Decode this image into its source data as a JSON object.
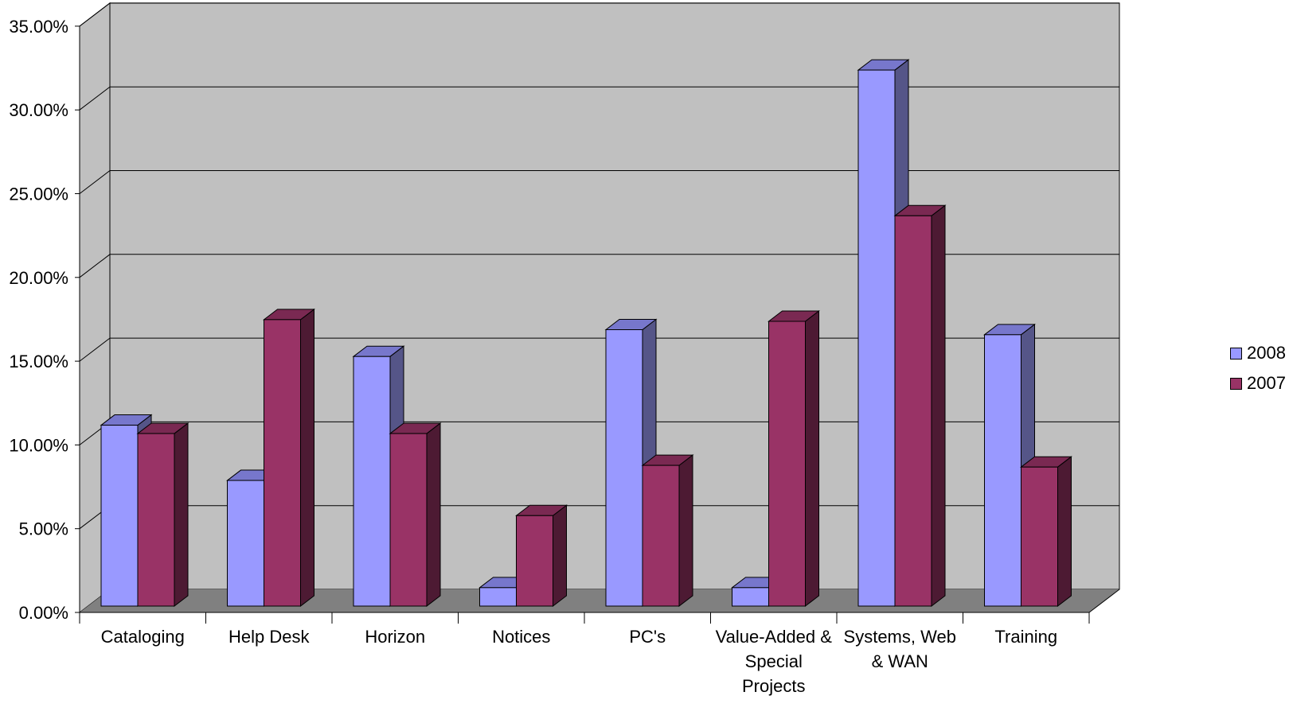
{
  "chart_data": {
    "type": "bar",
    "categories": [
      "Cataloging",
      "Help Desk",
      "Horizon",
      "Notices",
      "PC's",
      "Value-Added & Special Projects",
      "Systems, Web & WAN",
      "Training"
    ],
    "category_lines": [
      [
        "Cataloging"
      ],
      [
        "Help Desk"
      ],
      [
        "Horizon"
      ],
      [
        "Notices"
      ],
      [
        "PC's"
      ],
      [
        "Value-Added &",
        "Special",
        "Projects"
      ],
      [
        "Systems, Web",
        "& WAN"
      ],
      [
        "Training"
      ]
    ],
    "series": [
      {
        "name": "2008",
        "color": "#9999ff",
        "values": [
          10.8,
          7.5,
          14.9,
          1.1,
          16.5,
          1.1,
          32.0,
          16.2
        ]
      },
      {
        "name": "2007",
        "color": "#993366",
        "values": [
          10.3,
          17.1,
          10.3,
          5.4,
          8.4,
          17.0,
          23.3,
          8.3
        ]
      }
    ],
    "y_ticks": [
      "0.00%",
      "5.00%",
      "10.00%",
      "15.00%",
      "20.00%",
      "25.00%",
      "30.00%",
      "35.00%"
    ],
    "ylim": [
      0,
      35
    ],
    "legend_position": "right",
    "grid": true
  }
}
